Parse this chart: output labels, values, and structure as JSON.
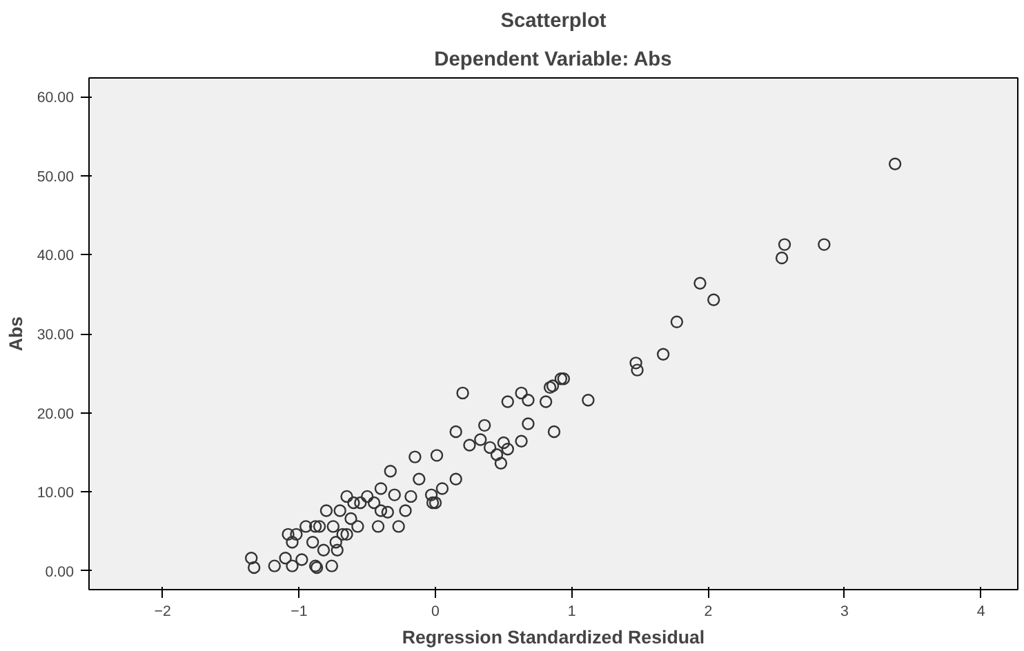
{
  "chart_data": {
    "type": "scatter",
    "title": "Scatterplot",
    "subtitle": "Dependent Variable: Abs",
    "xlabel": "Regression Standardized Residual",
    "ylabel": "Abs",
    "xlim": [
      -2.54,
      4.27
    ],
    "ylim": [
      -2.4,
      62.4
    ],
    "xticks": [
      -2,
      -1,
      0,
      1,
      2,
      3,
      4
    ],
    "yticks": [
      {
        "value": 0,
        "label": "0.00"
      },
      {
        "value": 10,
        "label": "10.00"
      },
      {
        "value": 20,
        "label": "20.00"
      },
      {
        "value": 30,
        "label": "30.00"
      },
      {
        "value": 40,
        "label": "40.00"
      },
      {
        "value": 50,
        "label": "50.00"
      },
      {
        "value": 60,
        "label": "60.00"
      }
    ],
    "grid": false,
    "marker": "circle",
    "series": [
      {
        "color": "#333333",
        "x": [
          3.37,
          2.56,
          2.54,
          2.85,
          1.94,
          2.04,
          1.77,
          1.67,
          1.47,
          1.48,
          1.12,
          0.94,
          0.92,
          0.86,
          0.84,
          0.87,
          0.81,
          0.68,
          0.63,
          0.53,
          0.2,
          0.68,
          0.63,
          0.53,
          0.5,
          0.48,
          0.45,
          0.4,
          0.36,
          0.33,
          0.25,
          0.15,
          0.15,
          0.05,
          0.01,
          0.0,
          -0.02,
          -0.03,
          -0.15,
          -0.12,
          -0.18,
          -0.22,
          -0.27,
          -0.3,
          -0.33,
          -0.35,
          -0.4,
          -0.4,
          -0.42,
          -0.45,
          -0.5,
          -0.55,
          -0.57,
          -0.6,
          -0.62,
          -0.65,
          -0.65,
          -0.7,
          -0.68,
          -0.72,
          -0.73,
          -0.75,
          -0.8,
          -0.82,
          -0.76,
          -0.85,
          -0.88,
          -0.88,
          -0.87,
          -0.9,
          -0.95,
          -0.98,
          -1.02,
          -1.05,
          -1.08,
          -1.05,
          -1.1,
          -1.18,
          -1.35,
          -1.33
        ],
        "values": [
          51.5,
          41.3,
          39.6,
          41.3,
          36.4,
          34.3,
          31.5,
          27.4,
          26.3,
          25.4,
          21.6,
          24.3,
          24.3,
          23.4,
          23.2,
          17.6,
          21.4,
          21.6,
          22.5,
          21.4,
          22.5,
          18.6,
          16.4,
          15.4,
          16.2,
          13.6,
          14.7,
          15.6,
          18.4,
          16.6,
          15.9,
          17.6,
          11.6,
          10.4,
          14.6,
          8.6,
          8.6,
          9.6,
          14.4,
          11.6,
          9.4,
          7.6,
          5.6,
          9.6,
          12.6,
          7.4,
          7.6,
          10.4,
          5.6,
          8.6,
          9.4,
          8.6,
          5.6,
          8.6,
          6.6,
          9.4,
          4.6,
          7.6,
          4.6,
          2.6,
          3.6,
          5.6,
          7.6,
          2.6,
          0.6,
          5.6,
          5.6,
          0.6,
          0.4,
          3.6,
          5.6,
          1.4,
          4.6,
          3.6,
          4.6,
          0.6,
          1.6,
          0.6,
          1.6,
          0.4
        ]
      }
    ]
  }
}
